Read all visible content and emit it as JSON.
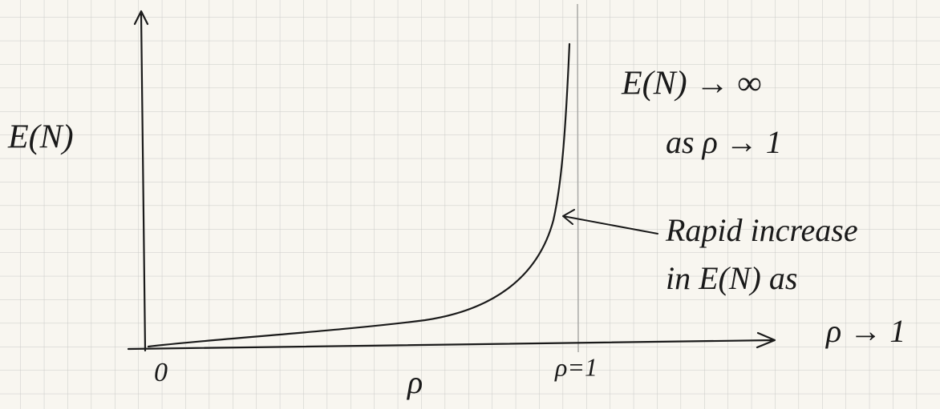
{
  "axes": {
    "y_label": "E(N)",
    "origin": "0",
    "x_label": "ρ",
    "x_mark": "ρ=1"
  },
  "annotations": [
    "E(N) → ∞",
    "as ρ → 1",
    "Rapid increase",
    "in E(N) as",
    "ρ → 1"
  ]
}
